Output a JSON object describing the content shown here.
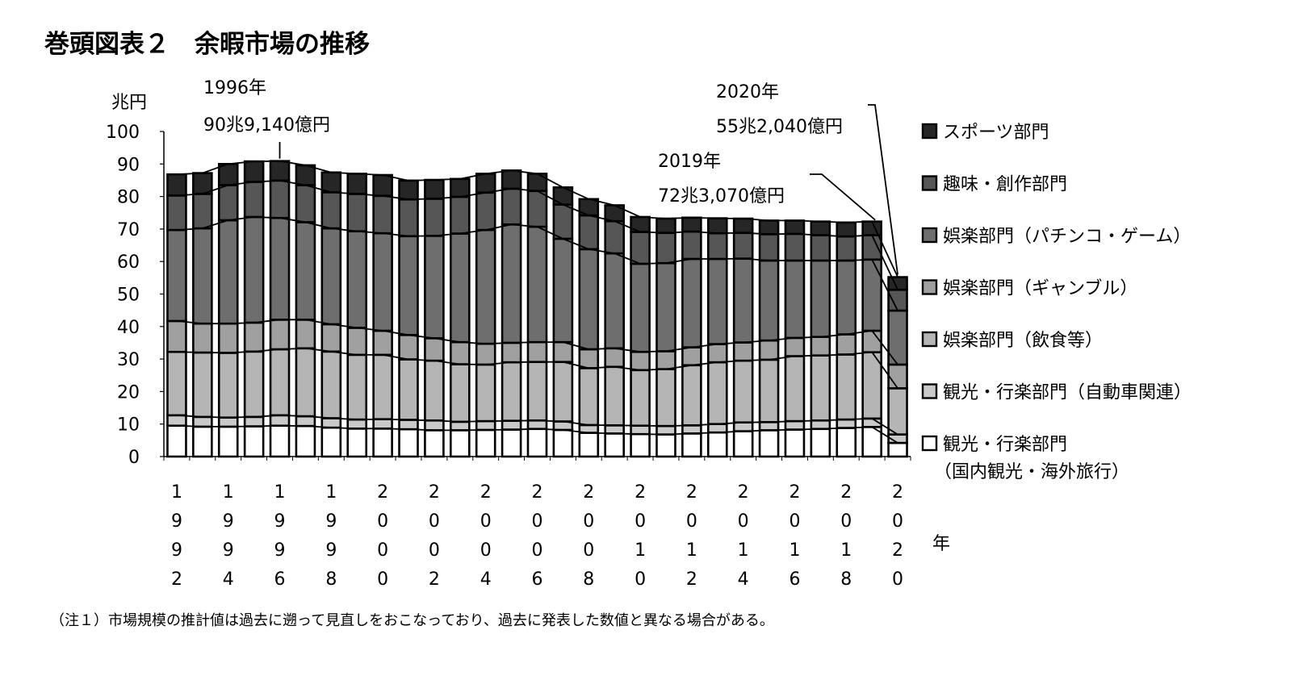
{
  "title": "巻頭図表２　余暇市場の推移",
  "note": "（注１）市場規模の推計値は過去に遡って見直しをおこなっており、過去に発表した数値と異なる場合がある。",
  "chart_data": {
    "type": "bar",
    "stacked": true,
    "ylabel": "兆円",
    "xlabel": "年",
    "ylim": [
      0,
      100
    ],
    "yticks": [
      0,
      10,
      20,
      30,
      40,
      50,
      60,
      70,
      80,
      90,
      100
    ],
    "categories": [
      "1992",
      "1993",
      "1994",
      "1995",
      "1996",
      "1997",
      "1998",
      "1999",
      "2000",
      "2001",
      "2002",
      "2003",
      "2004",
      "2005",
      "2006",
      "2007",
      "2008",
      "2009",
      "2010",
      "2011",
      "2012",
      "2013",
      "2014",
      "2015",
      "2016",
      "2017",
      "2018",
      "2019",
      "2020"
    ],
    "xtick_labels": [
      "1992",
      "1994",
      "1996",
      "1998",
      "2000",
      "2002",
      "2004",
      "2006",
      "2008",
      "2010",
      "2012",
      "2014",
      "2016",
      "2018",
      "2020"
    ],
    "series": [
      {
        "name": "観光・行楽部門（国内観光・海外旅行）",
        "color": "#ffffff",
        "values": [
          9.5,
          9.2,
          9.2,
          9.3,
          9.5,
          9.4,
          8.9,
          8.6,
          8.6,
          8.4,
          8.1,
          8.1,
          8.2,
          8.3,
          8.5,
          8.2,
          7.3,
          7.1,
          6.9,
          6.8,
          7.1,
          7.4,
          7.8,
          8.1,
          8.3,
          8.5,
          8.8,
          9.1,
          4.2
        ]
      },
      {
        "name": "観光・行楽部門（自動車関連）",
        "color": "#c9c9c9",
        "values": [
          3.2,
          3.0,
          2.8,
          2.9,
          3.2,
          3.0,
          2.9,
          2.8,
          2.9,
          2.9,
          3.0,
          2.6,
          2.7,
          2.7,
          2.6,
          2.6,
          2.4,
          2.5,
          2.6,
          2.6,
          2.5,
          2.6,
          2.7,
          2.5,
          2.6,
          2.6,
          2.6,
          2.6,
          2.6
        ]
      },
      {
        "name": "娯楽部門（飲食等）",
        "color": "#b5b5b5",
        "values": [
          19.5,
          19.8,
          19.9,
          20.1,
          20.3,
          20.9,
          20.5,
          19.9,
          19.8,
          18.6,
          18.4,
          17.7,
          17.4,
          18.0,
          18.0,
          18.3,
          17.5,
          18.0,
          17.1,
          17.5,
          18.5,
          19.0,
          19.0,
          19.2,
          20.0,
          20.0,
          20.0,
          20.4,
          14.2
        ]
      },
      {
        "name": "娯楽部門（ギャンブル）",
        "color": "#a0a0a0",
        "values": [
          9.5,
          8.9,
          9.0,
          8.9,
          9.1,
          8.8,
          8.4,
          8.3,
          7.4,
          7.5,
          6.9,
          6.8,
          6.4,
          6.0,
          6.1,
          6.1,
          5.8,
          5.7,
          5.6,
          5.5,
          5.5,
          5.6,
          5.6,
          5.9,
          5.6,
          5.7,
          6.2,
          6.6,
          7.3
        ]
      },
      {
        "name": "娯楽部門（パチンコ・ゲーム）",
        "color": "#6e6e6e",
        "values": [
          28.0,
          29.3,
          31.8,
          32.5,
          31.3,
          30.0,
          29.5,
          29.7,
          30.0,
          30.4,
          31.5,
          33.4,
          35.0,
          36.4,
          35.5,
          31.8,
          30.8,
          29.2,
          27.1,
          27.1,
          27.2,
          26.2,
          25.8,
          24.6,
          23.8,
          23.5,
          22.7,
          21.9,
          16.6
        ]
      },
      {
        "name": "趣味・創作部門",
        "color": "#565656",
        "values": [
          10.6,
          10.6,
          10.8,
          10.8,
          11.5,
          11.4,
          11.1,
          11.5,
          11.5,
          11.3,
          11.4,
          11.3,
          11.5,
          11.0,
          11.0,
          10.5,
          10.4,
          9.9,
          9.8,
          9.3,
          8.4,
          7.9,
          7.9,
          8.1,
          8.2,
          7.8,
          7.4,
          7.5,
          6.4
        ]
      },
      {
        "name": "スポーツ部門",
        "color": "#262626",
        "values": [
          6.5,
          6.4,
          6.5,
          6.3,
          6.0,
          6.1,
          6.1,
          6.2,
          6.4,
          5.8,
          5.8,
          5.5,
          5.8,
          5.6,
          5.3,
          5.3,
          5.0,
          4.9,
          4.6,
          4.4,
          4.3,
          4.6,
          4.4,
          4.2,
          4.1,
          4.2,
          4.3,
          4.2,
          3.9
        ]
      }
    ],
    "annotations": [
      {
        "year": "1996",
        "line1": "1996年",
        "line2": "90兆9,140億円"
      },
      {
        "year": "2019",
        "line1": "2019年",
        "line2": "72兆3,070億円"
      },
      {
        "year": "2020",
        "line1": "2020年",
        "line2": "55兆2,040億円"
      }
    ],
    "legend_position": "right",
    "grid": false
  }
}
